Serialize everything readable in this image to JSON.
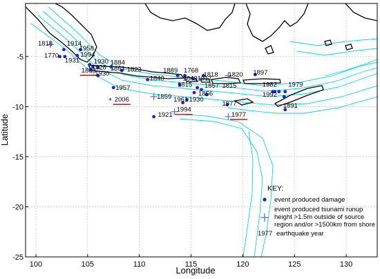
{
  "chart_data": {
    "type": "scatter",
    "xlabel": "Longitude",
    "ylabel": "Latitude",
    "xlim": [
      99,
      133
    ],
    "ylim": [
      -25,
      0.3
    ],
    "xticks": [
      100,
      105,
      110,
      115,
      120,
      125,
      130
    ],
    "yticks": [
      -5,
      -10,
      -15,
      -20,
      -25
    ],
    "grid": true,
    "legend_position": "bottom-right",
    "damage_color": "#1f1fd6",
    "runup_color": "#5a6fd0",
    "underline_color": "#d42020",
    "bathymetry_color": "#00d8e8",
    "legend": {
      "title": "KEY:",
      "damage": "event produced damage",
      "runup_line1": "event produced tsunami runup",
      "runup_line2": "height >1.5m outside of source",
      "runup_line3": "region and/or >1500km from shore",
      "year_sample": "1977",
      "year_label": "earthquake year"
    },
    "damage_points": [
      {
        "lon": 102.7,
        "lat": -4.3
      },
      {
        "lon": 102.3,
        "lat": -5.0
      },
      {
        "lon": 102.8,
        "lat": -5.0
      },
      {
        "lon": 104.0,
        "lat": -4.9
      },
      {
        "lon": 104.3,
        "lat": -4.3
      },
      {
        "lon": 105.2,
        "lat": -5.8
      },
      {
        "lon": 105.5,
        "lat": -6.0
      },
      {
        "lon": 105.3,
        "lat": -6.3
      },
      {
        "lon": 106.0,
        "lat": -6.1
      },
      {
        "lon": 107.3,
        "lat": -6.0
      },
      {
        "lon": 108.3,
        "lat": -6.4
      },
      {
        "lon": 106.0,
        "lat": -6.9
      },
      {
        "lon": 107.5,
        "lat": -8.1
      },
      {
        "lon": 110.8,
        "lat": -7.3
      },
      {
        "lon": 114.4,
        "lat": -6.9
      },
      {
        "lon": 113.7,
        "lat": -6.9
      },
      {
        "lon": 113.9,
        "lat": -7.8
      },
      {
        "lon": 115.2,
        "lat": -7.2
      },
      {
        "lon": 116.2,
        "lat": -6.9
      },
      {
        "lon": 115.6,
        "lat": -8.1
      },
      {
        "lon": 116.0,
        "lat": -8.3
      },
      {
        "lon": 115.3,
        "lat": -8.6
      },
      {
        "lon": 116.5,
        "lat": -8.8
      },
      {
        "lon": 114.6,
        "lat": -9.3
      },
      {
        "lon": 114.2,
        "lat": -9.6
      },
      {
        "lon": 121.2,
        "lat": -6.8
      },
      {
        "lon": 111.4,
        "lat": -11.0
      },
      {
        "lon": 122.9,
        "lat": -8.5
      },
      {
        "lon": 123.1,
        "lat": -8.5
      },
      {
        "lon": 123.5,
        "lat": -8.5
      },
      {
        "lon": 124.1,
        "lat": -8.5
      },
      {
        "lon": 124.0,
        "lat": -9.0
      },
      {
        "lon": 118.5,
        "lat": -9.8
      },
      {
        "lon": 124.1,
        "lat": -10.3
      }
    ],
    "runup_points": [
      {
        "lon": 101.4,
        "lat": -3.8
      },
      {
        "lon": 111.4,
        "lat": -9.0
      },
      {
        "lon": 118.6,
        "lat": -6.9
      },
      {
        "lon": 113.4,
        "lat": -10.5
      },
      {
        "lon": 118.6,
        "lat": -11.0
      }
    ],
    "year_labels": [
      {
        "text": "1818",
        "lon": 100.2,
        "lat": -3.9
      },
      {
        "text": "1914",
        "lon": 103.0,
        "lat": -3.9
      },
      {
        "text": "1958",
        "lon": 104.2,
        "lat": -4.4
      },
      {
        "text": "1770",
        "lon": 100.8,
        "lat": -5.1
      },
      {
        "text": "1994",
        "lon": 104.3,
        "lat": -5.0
      },
      {
        "text": "1931",
        "lon": 102.8,
        "lat": -5.6
      },
      {
        "text": "1930",
        "lon": 105.6,
        "lat": -5.7
      },
      {
        "text": "1884",
        "lon": 107.2,
        "lat": -5.8
      },
      {
        "text": "1928",
        "lon": 105.4,
        "lat": -6.3
      },
      {
        "text": "1861",
        "lon": 107.2,
        "lat": -6.4
      },
      {
        "text": "1823",
        "lon": 108.8,
        "lat": -6.5
      },
      {
        "text": "1883",
        "lon": 104.4,
        "lat": -6.6,
        "underline": true
      },
      {
        "text": "1930",
        "lon": 105.7,
        "lat": -6.9
      },
      {
        "text": "1840",
        "lon": 111.0,
        "lat": -7.4
      },
      {
        "text": "1889",
        "lon": 112.3,
        "lat": -6.6
      },
      {
        "text": "1768",
        "lon": 114.3,
        "lat": -6.6
      },
      {
        "text": "1843",
        "lon": 114.2,
        "lat": -7.4
      },
      {
        "text": "1917",
        "lon": 115.6,
        "lat": -7.4
      },
      {
        "text": "1818",
        "lon": 116.2,
        "lat": -7.0
      },
      {
        "text": "1820",
        "lon": 118.6,
        "lat": -7.0
      },
      {
        "text": "1897",
        "lon": 121.0,
        "lat": -6.8
      },
      {
        "text": "1815",
        "lon": 113.7,
        "lat": -8.0
      },
      {
        "text": "1857",
        "lon": 116.3,
        "lat": -8.1
      },
      {
        "text": "1815",
        "lon": 118.0,
        "lat": -8.1
      },
      {
        "text": "1982",
        "lon": 121.9,
        "lat": -8.0
      },
      {
        "text": "1979",
        "lon": 124.4,
        "lat": -8.0
      },
      {
        "text": "1957",
        "lon": 107.7,
        "lat": -8.3
      },
      {
        "text": "1856",
        "lon": 115.7,
        "lat": -8.9
      },
      {
        "text": "1992",
        "lon": 121.9,
        "lat": -9.0
      },
      {
        "text": "1859",
        "lon": 111.7,
        "lat": -9.2
      },
      {
        "text": "1930",
        "lon": 114.8,
        "lat": -9.5
      },
      {
        "text": "1961",
        "lon": 113.3,
        "lat": -9.5
      },
      {
        "text": "1977",
        "lon": 118.0,
        "lat": -9.9
      },
      {
        "text": "1891",
        "lon": 123.9,
        "lat": -10.1
      },
      {
        "text": "2006",
        "lon": 107.6,
        "lat": -9.5,
        "underline": true,
        "plus": true
      },
      {
        "text": "1994",
        "lon": 113.6,
        "lat": -10.5,
        "underline": true
      },
      {
        "text": "1921",
        "lon": 111.8,
        "lat": -11.0
      },
      {
        "text": "1977",
        "lon": 118.9,
        "lat": -11.0,
        "underline": true
      }
    ]
  }
}
